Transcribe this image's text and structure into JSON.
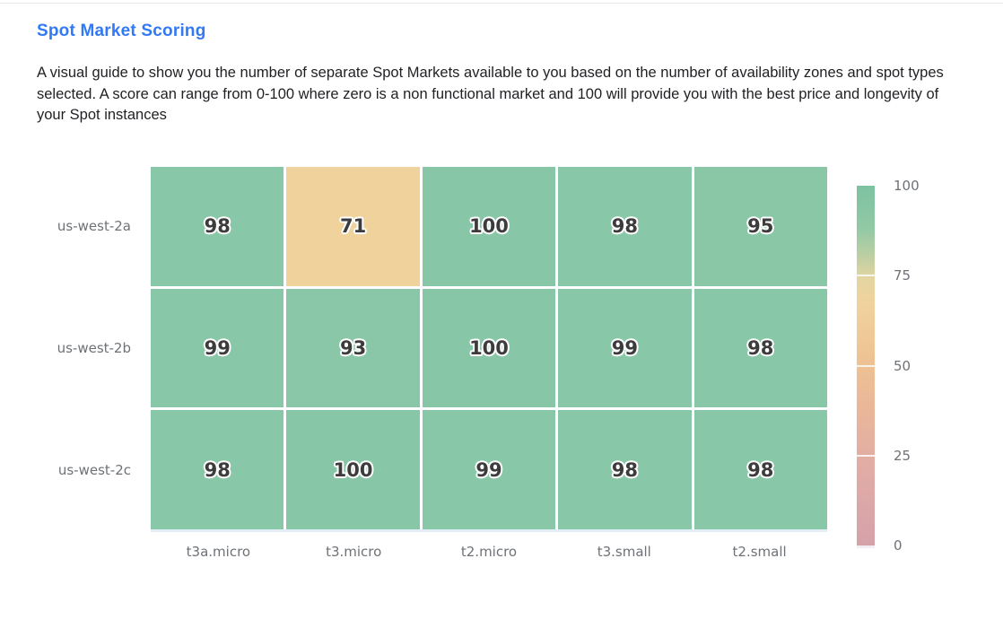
{
  "header": {
    "title": "Spot Market Scoring",
    "description": "A visual guide to show you the number of separate Spot Markets available to you based on the number of availability zones and spot types selected. A score can range from 0-100 where zero is a non functional market and 100 will provide you with the best price and longevity of your Spot instances"
  },
  "colors": {
    "title_accent": "#3279f5",
    "body_text": "#1f2023",
    "axis_label": "#6e7277",
    "cell_value_text": "#3c3c3c",
    "cell_green": "#88c7a7",
    "cell_amber": "#f0d29c",
    "grid_gap_line": "#ffffff"
  },
  "chart_data": {
    "type": "heatmap",
    "title": "Spot Market Scoring",
    "x_categories": [
      "t3a.micro",
      "t3.micro",
      "t2.micro",
      "t3.small",
      "t2.small"
    ],
    "y_categories": [
      "us-west-2a",
      "us-west-2b",
      "us-west-2c"
    ],
    "values": [
      [
        98,
        71,
        100,
        98,
        95
      ],
      [
        99,
        93,
        100,
        99,
        98
      ],
      [
        98,
        100,
        99,
        98,
        98
      ]
    ],
    "cell_colors": [
      [
        "#88c7a7",
        "#f0d29c",
        "#87c6a6",
        "#88c7a7",
        "#89c7a7"
      ],
      [
        "#88c7a7",
        "#8ac7a8",
        "#87c6a6",
        "#88c7a7",
        "#88c7a7"
      ],
      [
        "#88c7a7",
        "#87c6a6",
        "#88c7a7",
        "#88c7a7",
        "#88c7a7"
      ]
    ],
    "grid": false,
    "legend_position": "right",
    "colorbar": {
      "min": 0,
      "max": 100,
      "tick_labels": [
        "100",
        "75",
        "50",
        "25",
        "0"
      ],
      "tick_positions_pct": [
        0,
        25,
        50,
        75,
        100
      ],
      "separator_positions_pct": [
        25,
        50,
        75
      ],
      "gradient_stops": [
        {
          "pos": 0,
          "color": "#7dc2a1"
        },
        {
          "pos": 12,
          "color": "#92c9a5"
        },
        {
          "pos": 20,
          "color": "#c0cfa3"
        },
        {
          "pos": 26,
          "color": "#e4d5a1"
        },
        {
          "pos": 33,
          "color": "#f0d29e"
        },
        {
          "pos": 50,
          "color": "#eec193"
        },
        {
          "pos": 63,
          "color": "#e9b69a"
        },
        {
          "pos": 75,
          "color": "#e2aea3"
        },
        {
          "pos": 88,
          "color": "#dca7a8"
        },
        {
          "pos": 100,
          "color": "#d6a2a9"
        }
      ]
    }
  }
}
